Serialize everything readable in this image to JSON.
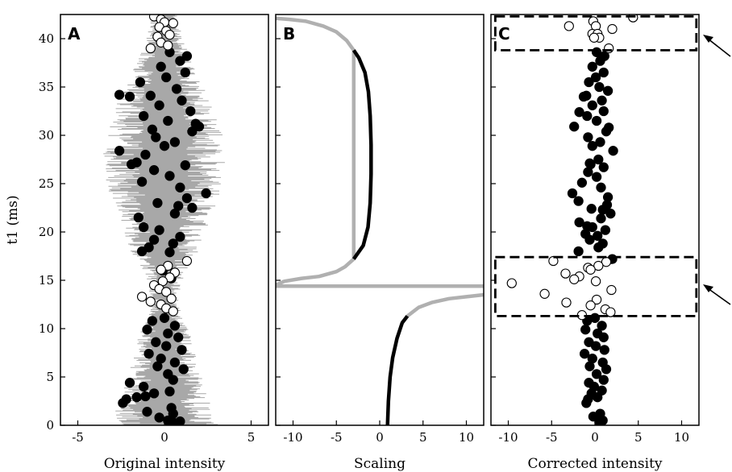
{
  "colors": {
    "trace": "#a8a8a8",
    "scaling_outer": "#b0b0b0",
    "filled_point": "#000000",
    "open_point_fill": "#ffffff",
    "box": "#000000"
  },
  "chart_data": [
    {
      "type": "scatter",
      "panel_letter": "A",
      "xlabel": "Original intensity",
      "ylabel": "t1 (ms)",
      "xlim": [
        -6,
        6
      ],
      "ylim": [
        0,
        42.5
      ],
      "xticks": [
        "-5",
        "0",
        "5"
      ],
      "yticks": [
        "0",
        "5",
        "10",
        "15",
        "20",
        "25",
        "30",
        "35",
        "40"
      ],
      "trace_envelope": [
        [
          0,
          3.1
        ],
        [
          2,
          2.8
        ],
        [
          4,
          2.3
        ],
        [
          6,
          2.0
        ],
        [
          8,
          1.7
        ],
        [
          10,
          1.4
        ],
        [
          11,
          1.1
        ],
        [
          12,
          0.9
        ],
        [
          13,
          0.8
        ],
        [
          14,
          0.9
        ],
        [
          15,
          1.1
        ],
        [
          16,
          1.3
        ],
        [
          17,
          1.6
        ],
        [
          18,
          2.0
        ],
        [
          20,
          2.4
        ],
        [
          22,
          2.8
        ],
        [
          24,
          3.2
        ],
        [
          26,
          3.5
        ],
        [
          28,
          3.6
        ],
        [
          30,
          3.5
        ],
        [
          32,
          3.2
        ],
        [
          34,
          2.6
        ],
        [
          36,
          2.0
        ],
        [
          38,
          1.5
        ],
        [
          40,
          1.1
        ],
        [
          42,
          0.8
        ]
      ],
      "series": [
        {
          "marker": "filled",
          "points": [
            [
              0.5,
              0.3
            ],
            [
              0.2,
              0.5
            ],
            [
              0.9,
              0.4
            ],
            [
              -0.3,
              0.8
            ],
            [
              0.5,
              1.2
            ],
            [
              -1.0,
              1.4
            ],
            [
              0.4,
              1.8
            ],
            [
              -2.4,
              2.3
            ],
            [
              -2.2,
              2.7
            ],
            [
              -1.6,
              2.9
            ],
            [
              -1.1,
              3.0
            ],
            [
              -0.6,
              3.3
            ],
            [
              0.3,
              3.5
            ],
            [
              -1.2,
              4.0
            ],
            [
              -2.0,
              4.4
            ],
            [
              0.5,
              4.7
            ],
            [
              0.2,
              5.3
            ],
            [
              1.1,
              5.8
            ],
            [
              -0.4,
              6.1
            ],
            [
              0.6,
              6.5
            ],
            [
              -0.2,
              6.9
            ],
            [
              -0.9,
              7.4
            ],
            [
              1.0,
              7.8
            ],
            [
              0.1,
              8.2
            ],
            [
              -0.5,
              8.6
            ],
            [
              0.8,
              9.1
            ],
            [
              0.2,
              9.5
            ],
            [
              -1.0,
              9.9
            ],
            [
              0.6,
              10.3
            ],
            [
              -0.7,
              10.8
            ],
            [
              0.0,
              11.1
            ],
            [
              -1.2,
              20.5
            ],
            [
              -0.3,
              20.2
            ],
            [
              0.9,
              19.5
            ],
            [
              -1.5,
              21.5
            ],
            [
              0.6,
              21.9
            ],
            [
              1.6,
              22.5
            ],
            [
              -0.4,
              23.0
            ],
            [
              1.3,
              23.5
            ],
            [
              2.4,
              24.0
            ],
            [
              0.9,
              24.6
            ],
            [
              -1.3,
              25.2
            ],
            [
              0.3,
              25.8
            ],
            [
              -0.6,
              26.4
            ],
            [
              1.2,
              26.9
            ],
            [
              -1.6,
              27.2
            ],
            [
              -1.1,
              28.0
            ],
            [
              -2.6,
              28.4
            ],
            [
              0.0,
              28.9
            ],
            [
              0.6,
              29.3
            ],
            [
              -0.5,
              29.8
            ],
            [
              1.6,
              30.4
            ],
            [
              2.0,
              30.9
            ],
            [
              0.2,
              31.5
            ],
            [
              -1.2,
              32.0
            ],
            [
              1.5,
              32.5
            ],
            [
              -0.3,
              33.1
            ],
            [
              1.0,
              33.6
            ],
            [
              -0.8,
              34.1
            ],
            [
              -2.6,
              34.2
            ],
            [
              0.7,
              34.8
            ],
            [
              -1.4,
              35.5
            ],
            [
              0.1,
              36.0
            ],
            [
              1.2,
              36.5
            ],
            [
              -0.2,
              37.1
            ],
            [
              0.9,
              37.7
            ],
            [
              1.3,
              38.2
            ],
            [
              0.3,
              38.6
            ],
            [
              -2.0,
              34.0
            ],
            [
              -0.7,
              30.6
            ],
            [
              1.8,
              31.2
            ],
            [
              -1.9,
              27.0
            ],
            [
              0.8,
              22.7
            ],
            [
              -0.9,
              18.4
            ],
            [
              0.3,
              17.9
            ],
            [
              -0.6,
              19.2
            ],
            [
              0.5,
              18.8
            ],
            [
              -1.3,
              18.0
            ],
            [
              0.4,
              15.2
            ],
            [
              -0.1,
              16.0
            ]
          ]
        },
        {
          "marker": "open",
          "points": [
            [
              -0.6,
              42.3
            ],
            [
              -0.2,
              42.0
            ],
            [
              0.0,
              41.7
            ],
            [
              0.5,
              41.6
            ],
            [
              -0.3,
              41.2
            ],
            [
              0.1,
              40.8
            ],
            [
              0.3,
              40.4
            ],
            [
              -0.4,
              40.2
            ],
            [
              -0.2,
              39.6
            ],
            [
              0.2,
              39.3
            ],
            [
              -0.8,
              39.0
            ],
            [
              1.3,
              17.0
            ],
            [
              0.2,
              16.5
            ],
            [
              -0.2,
              16.1
            ],
            [
              0.6,
              15.8
            ],
            [
              0.3,
              15.3
            ],
            [
              -0.1,
              14.9
            ],
            [
              -0.6,
              14.5
            ],
            [
              -0.3,
              14.1
            ],
            [
              0.1,
              13.8
            ],
            [
              -1.3,
              13.3
            ],
            [
              0.4,
              13.1
            ],
            [
              -0.8,
              12.8
            ],
            [
              -0.2,
              12.5
            ],
            [
              0.1,
              12.1
            ],
            [
              0.5,
              11.8
            ]
          ]
        }
      ]
    },
    {
      "type": "line",
      "panel_letter": "B",
      "xlabel": "Scaling",
      "xlim": [
        -12,
        12
      ],
      "ylim": [
        0,
        42.5
      ],
      "xticks": [
        "-10",
        "-5",
        "0",
        "5",
        "10"
      ],
      "pole_t1": 14.4,
      "upper_branch_inner": [
        [
          -3.0,
          17.2
        ],
        [
          -1.9,
          18.6
        ],
        [
          -1.35,
          20.5
        ],
        [
          -1.1,
          23.0
        ],
        [
          -1.0,
          26.0
        ],
        [
          -1.0,
          29.0
        ],
        [
          -1.1,
          32.0
        ],
        [
          -1.3,
          34.5
        ],
        [
          -1.7,
          36.5
        ],
        [
          -2.4,
          38.0
        ],
        [
          -3.0,
          38.8
        ]
      ],
      "upper_branch_outer": [
        [
          -12.0,
          14.5
        ],
        [
          -11.0,
          14.9
        ],
        [
          -9.0,
          15.2
        ],
        [
          -7.0,
          15.4
        ],
        [
          -5.0,
          15.9
        ],
        [
          -4.0,
          16.4
        ],
        [
          -3.0,
          17.2
        ],
        [
          -3.0,
          38.8
        ],
        [
          -3.8,
          39.8
        ],
        [
          -5.0,
          40.7
        ],
        [
          -6.5,
          41.3
        ],
        [
          -8.5,
          41.8
        ],
        [
          -10.5,
          42.0
        ],
        [
          -12.0,
          42.1
        ]
      ],
      "lower_branch_inner": [
        [
          0.9,
          0.0
        ],
        [
          1.0,
          2.5
        ],
        [
          1.2,
          5.0
        ],
        [
          1.5,
          7.0
        ],
        [
          2.0,
          9.0
        ],
        [
          2.6,
          10.6
        ],
        [
          3.2,
          11.3
        ]
      ],
      "lower_branch_outer": [
        [
          3.2,
          11.3
        ],
        [
          4.5,
          12.2
        ],
        [
          6.0,
          12.7
        ],
        [
          8.0,
          13.1
        ],
        [
          10.0,
          13.3
        ],
        [
          12.0,
          13.5
        ]
      ],
      "pole_line": [
        [
          -12.0,
          14.4
        ],
        [
          12.0,
          14.4
        ]
      ]
    },
    {
      "type": "scatter",
      "panel_letter": "C",
      "xlabel": "Corrected intensity",
      "xlim": [
        -12,
        12
      ],
      "ylim": [
        0,
        42.5
      ],
      "xticks": [
        "-10",
        "-5",
        "0",
        "5",
        "10"
      ],
      "highlight_boxes": [
        {
          "x": [
            -11.5,
            11.7
          ],
          "y": [
            38.8,
            42.3
          ]
        },
        {
          "x": [
            -11.5,
            11.7
          ],
          "y": [
            11.3,
            17.4
          ]
        }
      ],
      "series": [
        {
          "marker": "filled",
          "points": [
            [
              0.5,
              0.3
            ],
            [
              0.9,
              0.5
            ],
            [
              -0.2,
              0.9
            ],
            [
              0.6,
              1.2
            ],
            [
              -1.0,
              2.3
            ],
            [
              -0.8,
              2.7
            ],
            [
              0.3,
              2.9
            ],
            [
              -0.4,
              3.3
            ],
            [
              0.8,
              3.6
            ],
            [
              -0.1,
              4.0
            ],
            [
              -0.7,
              4.4
            ],
            [
              1.0,
              4.7
            ],
            [
              0.2,
              5.3
            ],
            [
              1.3,
              5.8
            ],
            [
              -0.6,
              6.1
            ],
            [
              0.9,
              6.5
            ],
            [
              -0.3,
              6.9
            ],
            [
              -1.2,
              7.4
            ],
            [
              1.1,
              7.8
            ],
            [
              0.1,
              8.2
            ],
            [
              -0.7,
              8.6
            ],
            [
              1.0,
              9.1
            ],
            [
              0.3,
              9.5
            ],
            [
              -1.1,
              9.9
            ],
            [
              0.8,
              10.3
            ],
            [
              -0.9,
              10.8
            ],
            [
              0.0,
              11.1
            ],
            [
              -1.9,
              18.0
            ],
            [
              0.9,
              18.8
            ],
            [
              -0.6,
              19.2
            ],
            [
              0.3,
              19.6
            ],
            [
              1.2,
              20.2
            ],
            [
              -0.3,
              20.5
            ],
            [
              -1.8,
              21.0
            ],
            [
              0.7,
              21.4
            ],
            [
              1.8,
              21.9
            ],
            [
              -0.4,
              22.4
            ],
            [
              1.4,
              22.8
            ],
            [
              -1.9,
              23.2
            ],
            [
              1.5,
              23.6
            ],
            [
              -2.6,
              24.0
            ],
            [
              0.7,
              24.6
            ],
            [
              -1.5,
              25.1
            ],
            [
              0.2,
              25.7
            ],
            [
              -0.8,
              26.2
            ],
            [
              1.0,
              26.7
            ],
            [
              -0.6,
              27.1
            ],
            [
              0.4,
              27.5
            ],
            [
              2.1,
              28.4
            ],
            [
              -0.3,
              28.9
            ],
            [
              0.6,
              29.3
            ],
            [
              -0.8,
              29.8
            ],
            [
              1.3,
              30.4
            ],
            [
              -2.4,
              30.9
            ],
            [
              0.2,
              31.5
            ],
            [
              -0.9,
              32.0
            ],
            [
              1.0,
              32.5
            ],
            [
              -0.3,
              33.1
            ],
            [
              0.8,
              33.6
            ],
            [
              -1.0,
              34.1
            ],
            [
              1.5,
              34.6
            ],
            [
              0.5,
              35.0
            ],
            [
              -0.7,
              35.5
            ],
            [
              0.1,
              36.0
            ],
            [
              1.0,
              36.5
            ],
            [
              -0.3,
              37.1
            ],
            [
              0.6,
              37.7
            ],
            [
              1.1,
              38.2
            ],
            [
              0.2,
              38.6
            ],
            [
              -1.3,
              34.0
            ],
            [
              -1.8,
              32.4
            ],
            [
              1.6,
              30.8
            ],
            [
              -0.5,
              27.0
            ],
            [
              0.9,
              22.3
            ],
            [
              -1.1,
              19.8
            ],
            [
              0.4,
              18.4
            ],
            [
              2.0,
              17.2
            ],
            [
              -0.9,
              20.6
            ]
          ]
        },
        {
          "marker": "open",
          "points": [
            [
              4.4,
              42.2
            ],
            [
              -0.2,
              41.8
            ],
            [
              -3.0,
              41.3
            ],
            [
              0.1,
              41.3
            ],
            [
              2.0,
              41.0
            ],
            [
              -0.3,
              40.5
            ],
            [
              0.3,
              40.5
            ],
            [
              0.5,
              40.1
            ],
            [
              -0.1,
              40.1
            ],
            [
              1.6,
              39.0
            ],
            [
              -4.8,
              17.0
            ],
            [
              1.3,
              16.9
            ],
            [
              -0.8,
              16.3
            ],
            [
              0.4,
              16.5
            ],
            [
              -0.5,
              16.1
            ],
            [
              -3.4,
              15.7
            ],
            [
              -1.8,
              15.4
            ],
            [
              -2.4,
              15.1
            ],
            [
              0.1,
              14.9
            ],
            [
              -9.6,
              14.7
            ],
            [
              1.9,
              14.0
            ],
            [
              -5.8,
              13.6
            ],
            [
              0.2,
              13.0
            ],
            [
              -3.3,
              12.7
            ],
            [
              -0.5,
              12.4
            ],
            [
              1.2,
              12.0
            ],
            [
              1.8,
              11.7
            ],
            [
              -1.5,
              11.4
            ]
          ]
        }
      ]
    }
  ]
}
